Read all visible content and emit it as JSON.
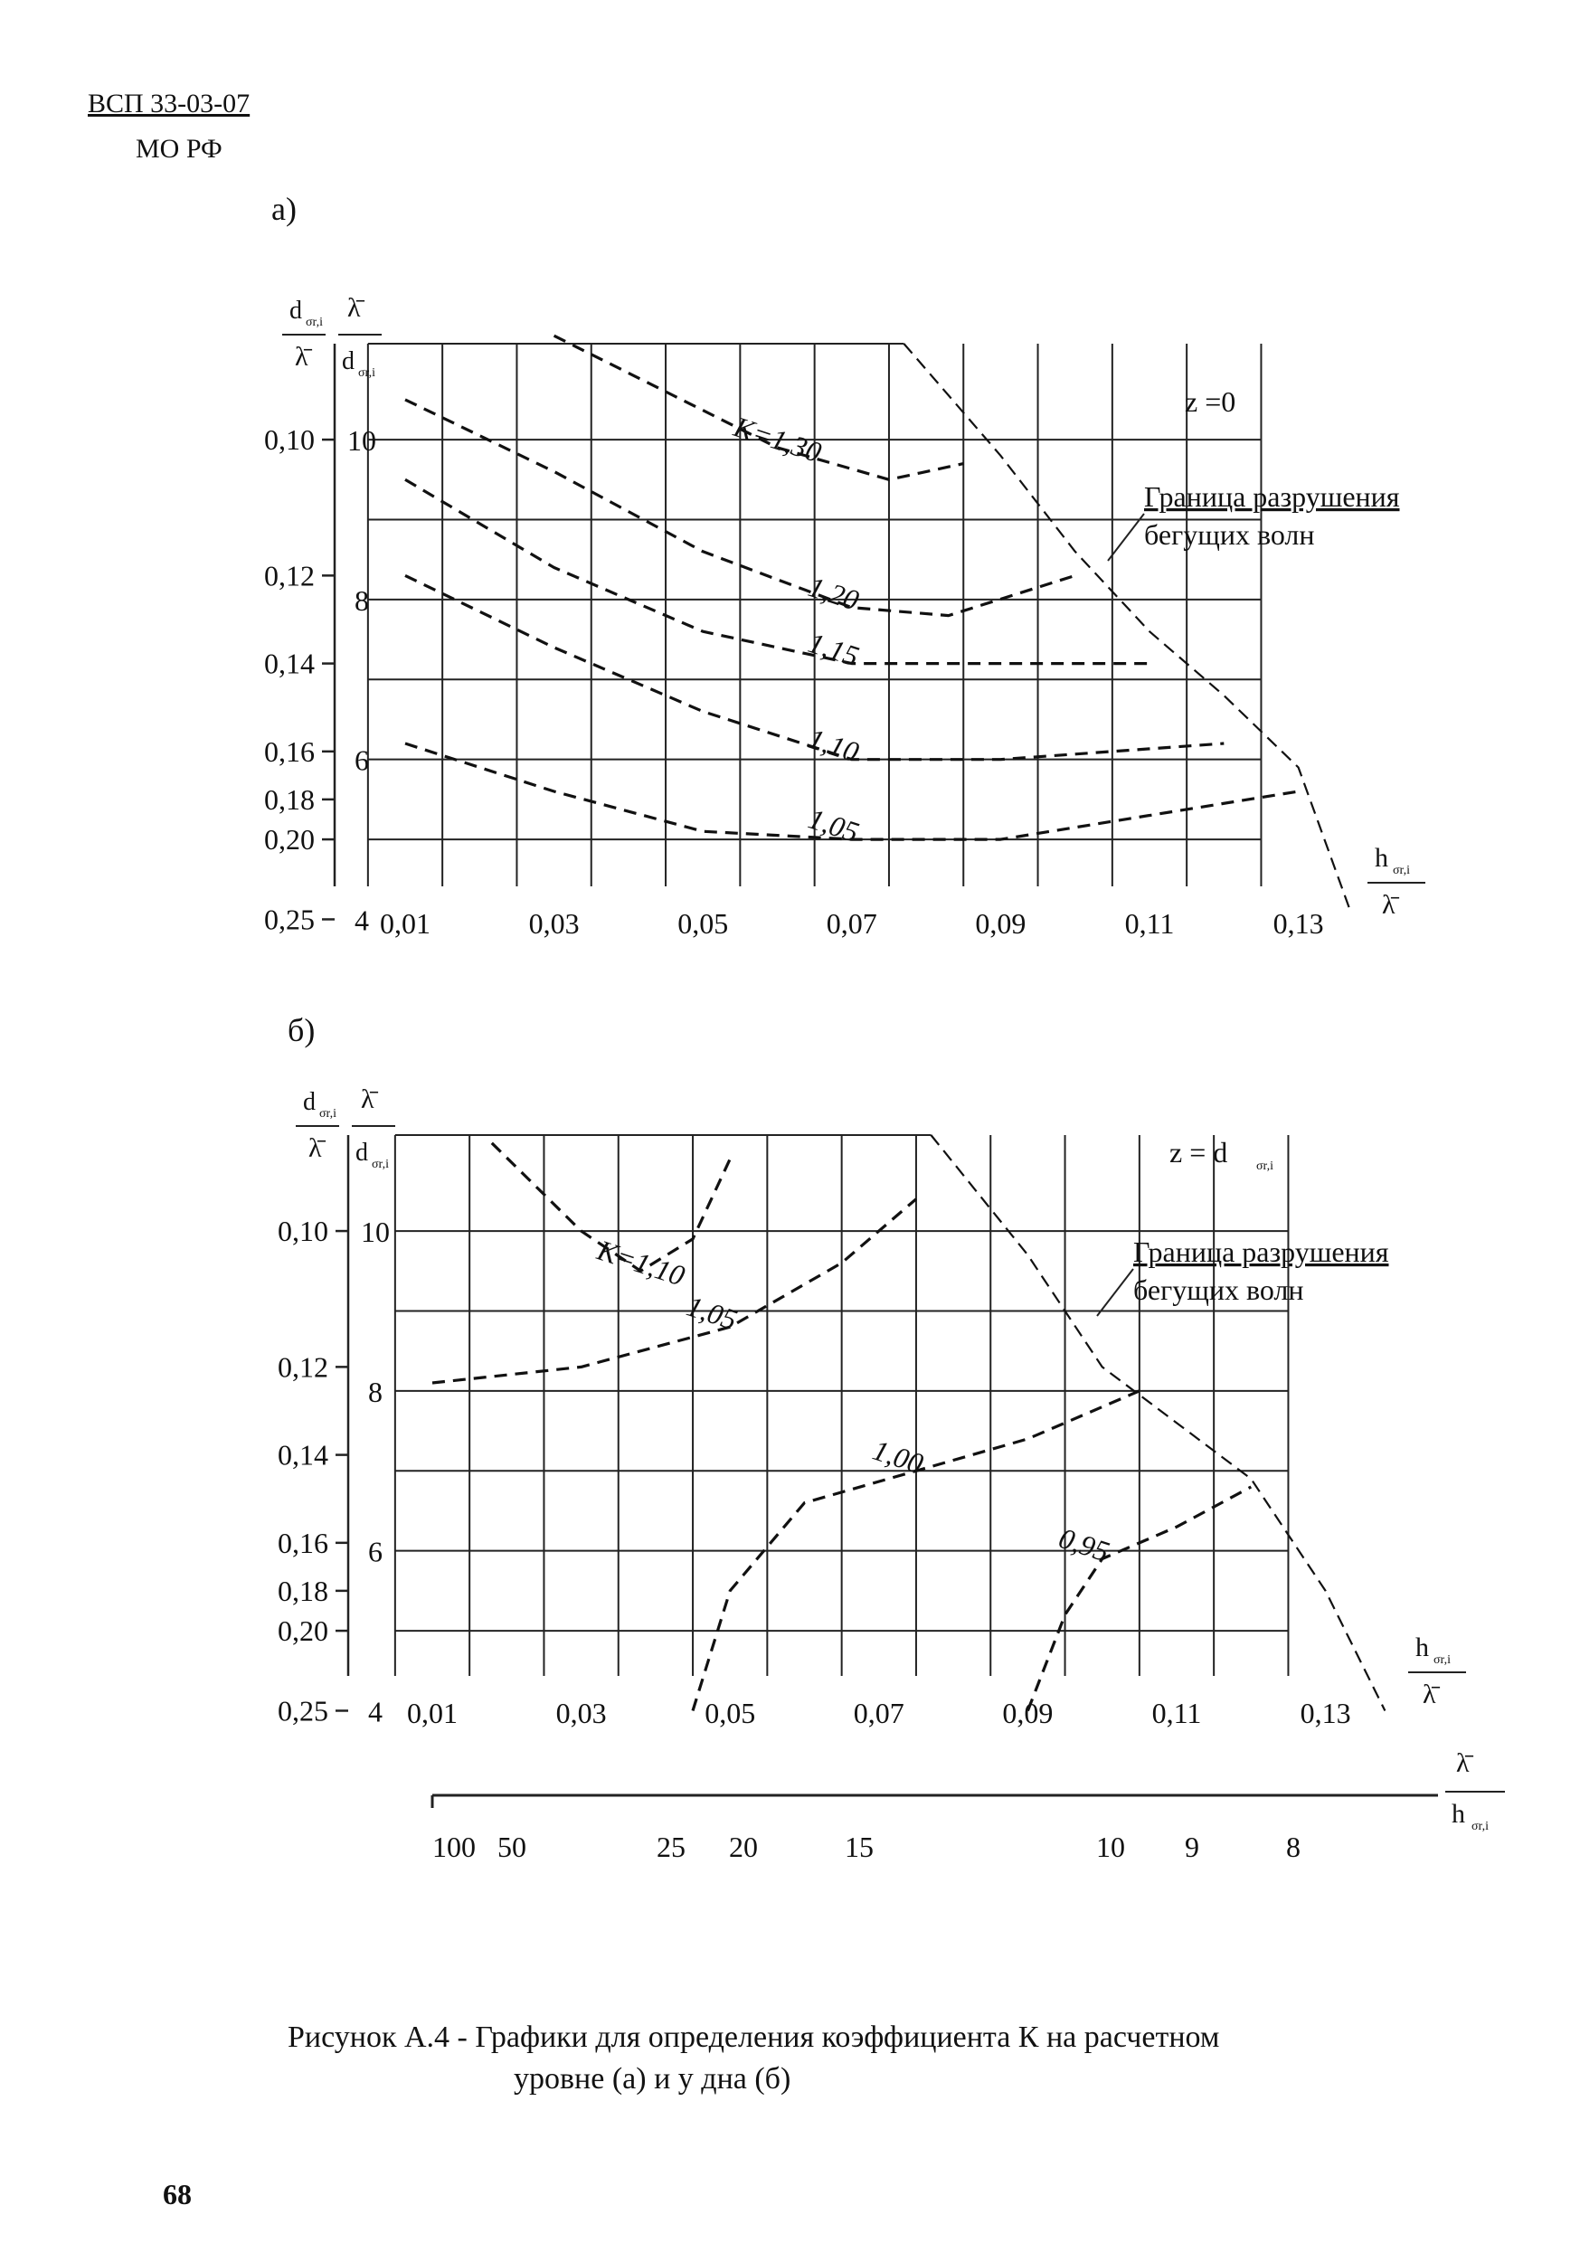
{
  "header": {
    "line1": "ВСП 33-03-07",
    "line2": "МО РФ"
  },
  "charts": [
    {
      "id": "a",
      "sublabel": "а)",
      "z_label": "z =0",
      "boundary_label": [
        "Граница разрушения",
        "бегущих волн"
      ],
      "contour_labels": [
        "K=1,30",
        "1,20",
        "1,15",
        "1,10",
        "1,05"
      ]
    },
    {
      "id": "b",
      "sublabel": "б)",
      "z_label": "z = d",
      "z_sub": "σr,i",
      "boundary_label": [
        "Граница разрушения",
        "бегущих волн"
      ],
      "contour_labels": [
        "K=1,10",
        "1,05",
        "1,00",
        "0,95"
      ]
    }
  ],
  "axis_labels": {
    "d": "d",
    "lambda": "λ̄",
    "h": "h",
    "sub": "σr,i"
  },
  "chart_data": [
    {
      "type": "line",
      "title": "z =0",
      "x": [
        0.01,
        0.03,
        0.05,
        0.07,
        0.09,
        0.11,
        0.13
      ],
      "x_tick_labels": [
        "0,01",
        "0,03",
        "0,05",
        "0,07",
        "0,09",
        "0,11",
        "0,13"
      ],
      "y_left_ticks": [
        "0,10",
        "0,12",
        "0,14",
        "0,16",
        "0,18",
        "0,20",
        "0,25"
      ],
      "y_right_ticks": [
        "10",
        "8",
        "6",
        "4"
      ],
      "series": [
        {
          "name": "K=1,30",
          "x": [
            0.03,
            0.045,
            0.06,
            0.075,
            0.085
          ],
          "y": [
            11.3,
            10.6,
            9.9,
            9.5,
            9.7
          ]
        },
        {
          "name": "1,20",
          "x": [
            0.01,
            0.03,
            0.05,
            0.07,
            0.083,
            0.1
          ],
          "y": [
            10.5,
            9.6,
            8.6,
            7.9,
            7.8,
            8.3
          ]
        },
        {
          "name": "1,15",
          "x": [
            0.01,
            0.03,
            0.05,
            0.07,
            0.09,
            0.11
          ],
          "y": [
            9.5,
            8.4,
            7.6,
            7.2,
            7.2,
            7.2
          ]
        },
        {
          "name": "1,10",
          "x": [
            0.01,
            0.03,
            0.05,
            0.07,
            0.09,
            0.12
          ],
          "y": [
            8.3,
            7.4,
            6.6,
            6.0,
            6.0,
            6.2
          ]
        },
        {
          "name": "1,05",
          "x": [
            0.01,
            0.03,
            0.05,
            0.07,
            0.09,
            0.13
          ],
          "y": [
            6.2,
            5.6,
            5.1,
            5.0,
            5.0,
            5.6
          ]
        },
        {
          "name": "Граница разрушения бегущих волн",
          "x": [
            0.077,
            0.09,
            0.1,
            0.11,
            0.12,
            0.13,
            0.137
          ],
          "y": [
            11.2,
            9.8,
            8.6,
            7.6,
            6.8,
            5.9,
            4.1
          ]
        }
      ]
    },
    {
      "type": "line",
      "title": "z = d",
      "x": [
        0.01,
        0.03,
        0.05,
        0.07,
        0.09,
        0.11,
        0.13
      ],
      "x_tick_labels": [
        "0,01",
        "0,03",
        "0,05",
        "0,07",
        "0,09",
        "0,11",
        "0,13"
      ],
      "y_left_ticks": [
        "0,10",
        "0,12",
        "0,14",
        "0,16",
        "0,18",
        "0,20",
        "0,25"
      ],
      "y_right_ticks": [
        "10",
        "8",
        "6",
        "4"
      ],
      "secondary_x_tick_labels": [
        "100",
        "50",
        "25",
        "20",
        "15",
        "10",
        "9",
        "8"
      ],
      "series": [
        {
          "name": "K=1,10",
          "x": [
            0.018,
            0.03,
            0.038,
            0.045,
            0.05
          ],
          "y": [
            11.1,
            10.0,
            9.5,
            9.9,
            10.9
          ]
        },
        {
          "name": "1,05",
          "x": [
            0.01,
            0.03,
            0.05,
            0.065,
            0.075
          ],
          "y": [
            8.1,
            8.3,
            8.8,
            9.6,
            10.4
          ]
        },
        {
          "name": "1,00",
          "x": [
            0.045,
            0.05,
            0.06,
            0.075,
            0.09,
            0.105
          ],
          "y": [
            4.0,
            5.5,
            6.6,
            7.0,
            7.4,
            8.0
          ]
        },
        {
          "name": "0,95",
          "x": [
            0.09,
            0.095,
            0.1,
            0.11,
            0.12
          ],
          "y": [
            4.0,
            5.2,
            5.9,
            6.3,
            6.8
          ]
        },
        {
          "name": "Граница разрушения бегущих волн",
          "x": [
            0.077,
            0.09,
            0.1,
            0.11,
            0.12,
            0.13,
            0.138
          ],
          "y": [
            11.2,
            9.7,
            8.3,
            7.6,
            6.9,
            5.5,
            4.0
          ]
        }
      ]
    }
  ],
  "caption": {
    "line1": "Рисунок А.4 - Графики для определения коэффициента К на расчетном",
    "line2": "уровне (а)  и у дна (б)"
  },
  "page_number": "68"
}
